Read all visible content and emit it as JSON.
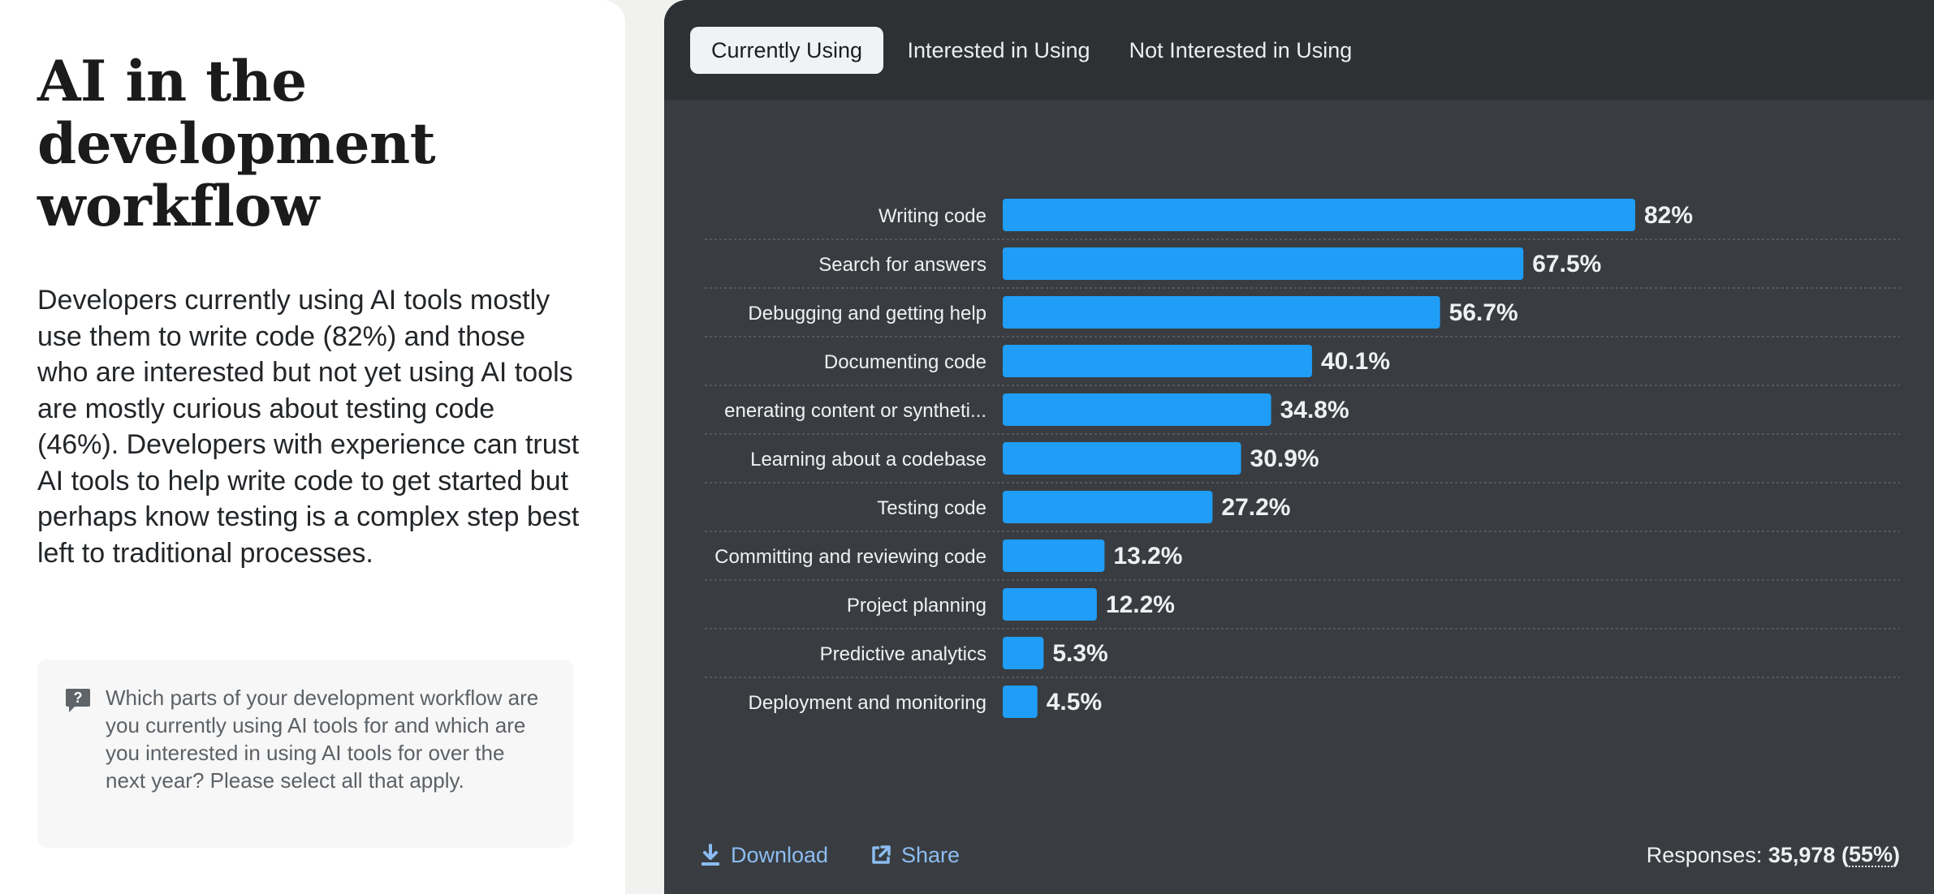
{
  "title": "AI in the development workflow",
  "description": "Developers currently using AI tools mostly use them to write code (82%) and those who are interested but not yet using AI tools are mostly curious about testing code (46%). Developers with experience can trust AI tools to help write code to get started but perhaps know testing is a complex step best left to traditional processes.",
  "question": {
    "icon": "question-icon",
    "text": "Which parts of your development workflow are you currently using AI tools for and which are you interested in using AI tools for over the next year? Please select all that apply."
  },
  "tabs": [
    {
      "label": "Currently Using",
      "active": true
    },
    {
      "label": "Interested in Using",
      "active": false
    },
    {
      "label": "Not Interested in Using",
      "active": false
    }
  ],
  "chart_data": {
    "type": "bar",
    "orientation": "horizontal",
    "categories": [
      "Writing code",
      "Search for answers",
      "Debugging and getting help",
      "Documenting code",
      "enerating content or syntheti...",
      "Learning about a codebase",
      "Testing code",
      "Committing and reviewing code",
      "Project planning",
      "Predictive analytics",
      "Deployment and monitoring"
    ],
    "values": [
      82,
      67.5,
      56.7,
      40.1,
      34.8,
      30.9,
      27.2,
      13.2,
      12.2,
      5.3,
      4.5
    ],
    "value_labels": [
      "82%",
      "67.5%",
      "56.7%",
      "40.1%",
      "34.8%",
      "30.9%",
      "27.2%",
      "13.2%",
      "12.2%",
      "5.3%",
      "4.5%"
    ],
    "xlim": [
      0,
      100
    ],
    "bar_color": "#1f9df7",
    "grid": "dashed row separators"
  },
  "footer": {
    "download_label": "Download",
    "download_icon": "download-icon",
    "share_label": "Share",
    "share_icon": "external-link-icon",
    "responses_label": "Responses:",
    "responses_count": "35,978",
    "responses_pct": "55%"
  },
  "colors": {
    "accent": "#1f9df7",
    "link": "#8cbdf2",
    "chart_bg": "#393d41",
    "tabbar_bg": "#2e3134"
  }
}
